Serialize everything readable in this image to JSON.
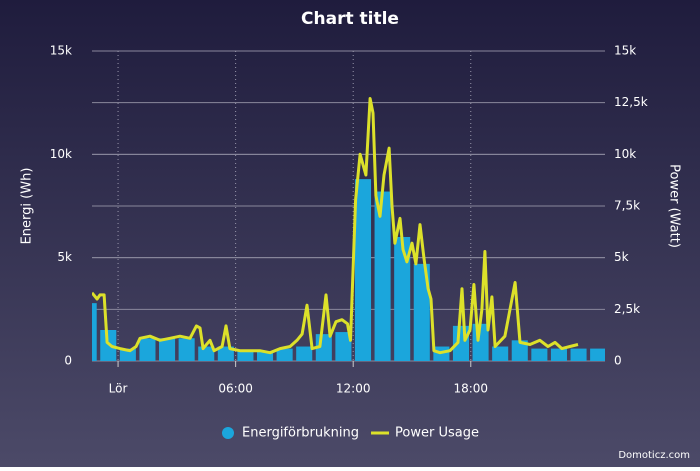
{
  "chart_data": {
    "type": "combo",
    "title": "Chart title",
    "ylabel": "Energi (Wh)",
    "y2label": "Power (Watt)",
    "credit": "Domoticz.com",
    "xlim": [
      -1.33,
      24.85
    ],
    "xticks": [
      {
        "value": 0,
        "label": "Lör"
      },
      {
        "value": 6,
        "label": "06:00"
      },
      {
        "value": 12,
        "label": "12:00"
      },
      {
        "value": 18,
        "label": "18:00"
      }
    ],
    "ylim": [
      0,
      15000
    ],
    "yticks": [
      0,
      {
        "value": 5000,
        "label": "5k"
      },
      {
        "value": 10000,
        "label": "10k"
      },
      {
        "value": 15000,
        "label": "15k"
      }
    ],
    "y2lim": [
      0,
      15000
    ],
    "y2ticks": [
      0,
      {
        "value": 2500,
        "label": "2,5k"
      },
      {
        "value": 5000,
        "label": "5k"
      },
      {
        "value": 7500,
        "label": "7,5k"
      },
      {
        "value": 10000,
        "label": "10k"
      },
      {
        "value": 12500,
        "label": "12,5k"
      },
      {
        "value": 15000,
        "label": "15k"
      }
    ],
    "grid": true,
    "series": [
      {
        "name": "Energiförbrukning",
        "type": "bar",
        "color": "#1ba6dc",
        "x": [
          -1.5,
          -0.5,
          0.5,
          1.5,
          2.5,
          3.5,
          4.5,
          5.5,
          6.5,
          7.5,
          8.5,
          9.5,
          10.5,
          11.5,
          12.5,
          13.5,
          14.5,
          15.5,
          16.5,
          17.5,
          18.5,
          19.5,
          20.5,
          21.5,
          22.5,
          23.5,
          24.5
        ],
        "values": [
          2800,
          1500,
          600,
          1100,
          1100,
          1100,
          700,
          700,
          500,
          450,
          600,
          700,
          1300,
          1400,
          8800,
          8200,
          6000,
          4700,
          700,
          1700,
          1800,
          700,
          1000,
          600,
          600,
          600,
          600
        ]
      },
      {
        "name": "Power Usage",
        "type": "line",
        "axis": "y2",
        "color": "#dce12a",
        "x": [
          -1.33,
          -1.07,
          -0.92,
          -0.71,
          -0.56,
          -0.31,
          0.1,
          0.61,
          0.92,
          1.12,
          1.63,
          2.14,
          2.65,
          3.16,
          3.67,
          4.0,
          4.18,
          4.34,
          4.69,
          4.9,
          5.31,
          5.51,
          5.71,
          6.22,
          6.73,
          7.24,
          7.76,
          8.27,
          8.78,
          9.13,
          9.39,
          9.64,
          9.9,
          10.3,
          10.61,
          10.82,
          11.12,
          11.43,
          11.71,
          11.86,
          12.12,
          12.35,
          12.65,
          12.86,
          13.01,
          13.16,
          13.37,
          13.57,
          13.83,
          13.98,
          14.13,
          14.39,
          14.54,
          14.74,
          15.0,
          15.2,
          15.41,
          15.61,
          15.82,
          15.97,
          16.12,
          16.43,
          16.94,
          17.35,
          17.55,
          17.7,
          17.96,
          18.16,
          18.37,
          18.57,
          18.72,
          18.88,
          19.08,
          19.24,
          19.74,
          20.26,
          20.51,
          21.02,
          21.53,
          21.94,
          22.3,
          22.65,
          23.06,
          23.47
        ],
        "values": [
          3300,
          3000,
          3200,
          3200,
          900,
          700,
          600,
          500,
          700,
          1100,
          1200,
          1000,
          1100,
          1200,
          1100,
          1700,
          1600,
          600,
          1000,
          500,
          700,
          1700,
          600,
          500,
          500,
          500,
          400,
          600,
          700,
          1000,
          1300,
          2700,
          600,
          700,
          3200,
          1200,
          1900,
          2000,
          1800,
          1000,
          7800,
          10000,
          9000,
          12700,
          12000,
          8000,
          7000,
          9000,
          10300,
          7500,
          5700,
          6900,
          5400,
          4800,
          5700,
          4700,
          6600,
          5000,
          3500,
          3000,
          500,
          400,
          500,
          900,
          3500,
          1000,
          1500,
          3700,
          1000,
          2500,
          5300,
          1500,
          3100,
          700,
          1200,
          3800,
          900,
          800,
          1000,
          700,
          900,
          600,
          700,
          800
        ]
      }
    ]
  }
}
